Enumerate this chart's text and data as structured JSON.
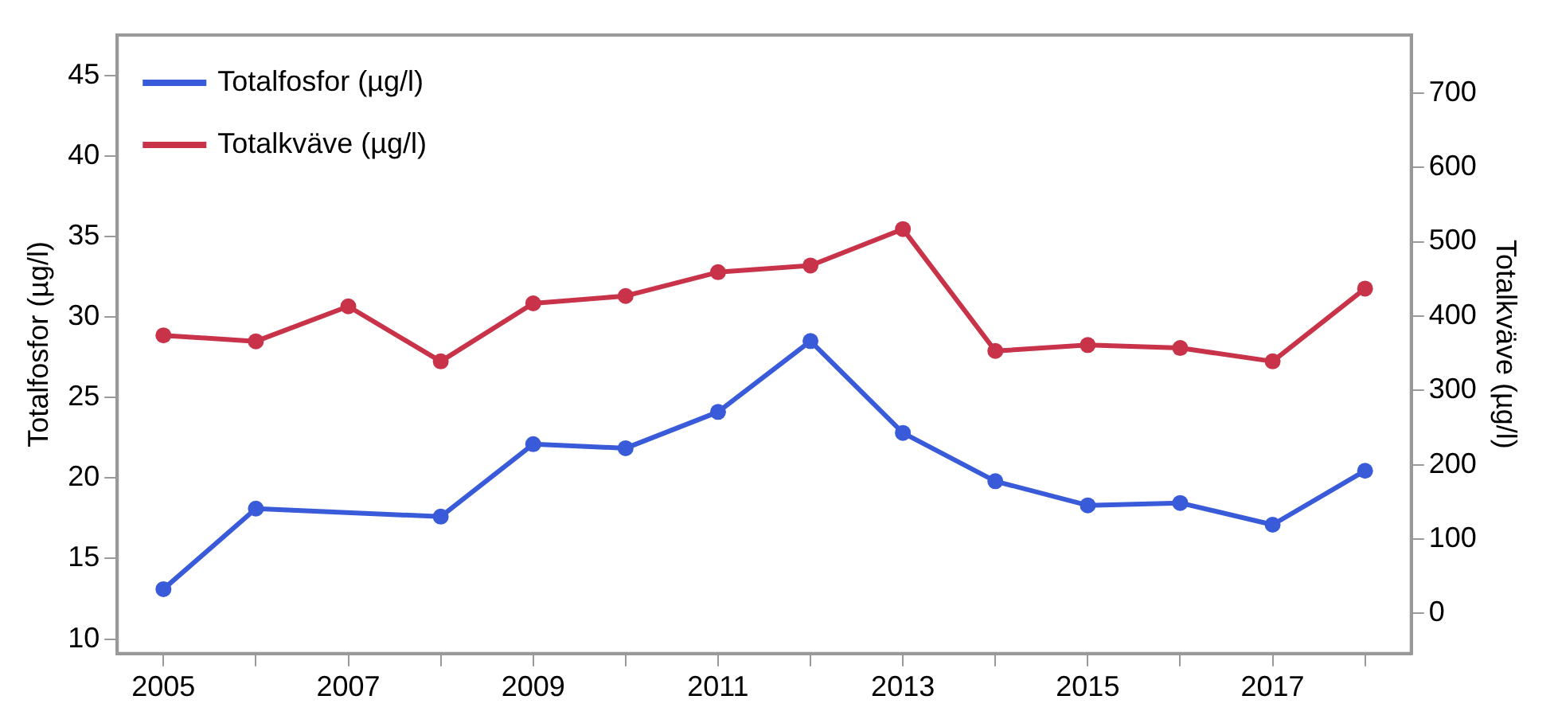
{
  "chart_data": {
    "type": "line",
    "x": [
      2005,
      2006,
      2007,
      2008,
      2009,
      2010,
      2011,
      2012,
      2013,
      2014,
      2015,
      2016,
      2017,
      2018
    ],
    "series": [
      {
        "name": "Totalfosfor (µg/l)",
        "color": "#3a5bd9",
        "x": [
          2005,
          2006,
          2008,
          2009,
          2010,
          2011,
          2012,
          2013,
          2014,
          2015,
          2016,
          2017,
          2018
        ],
        "values": [
          13.1,
          18.1,
          17.6,
          22.1,
          21.85,
          24.1,
          28.5,
          22.8,
          19.8,
          18.3,
          18.45,
          17.1,
          20.45
        ]
      },
      {
        "name": "Totalkväve (µg/l)",
        "color": "#c8334a",
        "axis": "y2",
        "values": [
          374,
          366,
          413,
          339,
          417,
          427,
          459,
          468,
          517,
          353,
          361,
          357,
          339,
          437
        ]
      }
    ],
    "ylabel": "Totalfosfor (µg/l)",
    "y2label": "Totalkväve (µg/l)",
    "xlim": [
      2004.5,
      2018.5
    ],
    "xticks": [
      2005,
      {
        "value": 2006,
        "label": null
      },
      2007,
      {
        "value": 2008,
        "label": null
      },
      2009,
      {
        "value": 2010,
        "label": null
      },
      2011,
      {
        "value": 2012,
        "label": null
      },
      2013,
      {
        "value": 2014,
        "label": null
      },
      2015,
      {
        "value": 2016,
        "label": null
      },
      2017,
      {
        "value": 2018,
        "label": null
      }
    ],
    "ylim": [
      9.1,
      47.5
    ],
    "yticks": [
      10,
      15,
      20,
      25,
      30,
      35,
      40,
      45
    ],
    "y2lim": [
      -54,
      778
    ],
    "y2ticks": [
      0,
      100,
      200,
      300,
      400,
      500,
      600,
      700
    ],
    "grid": false,
    "legend": "top left",
    "marker": "circle",
    "line_style": "solid"
  }
}
